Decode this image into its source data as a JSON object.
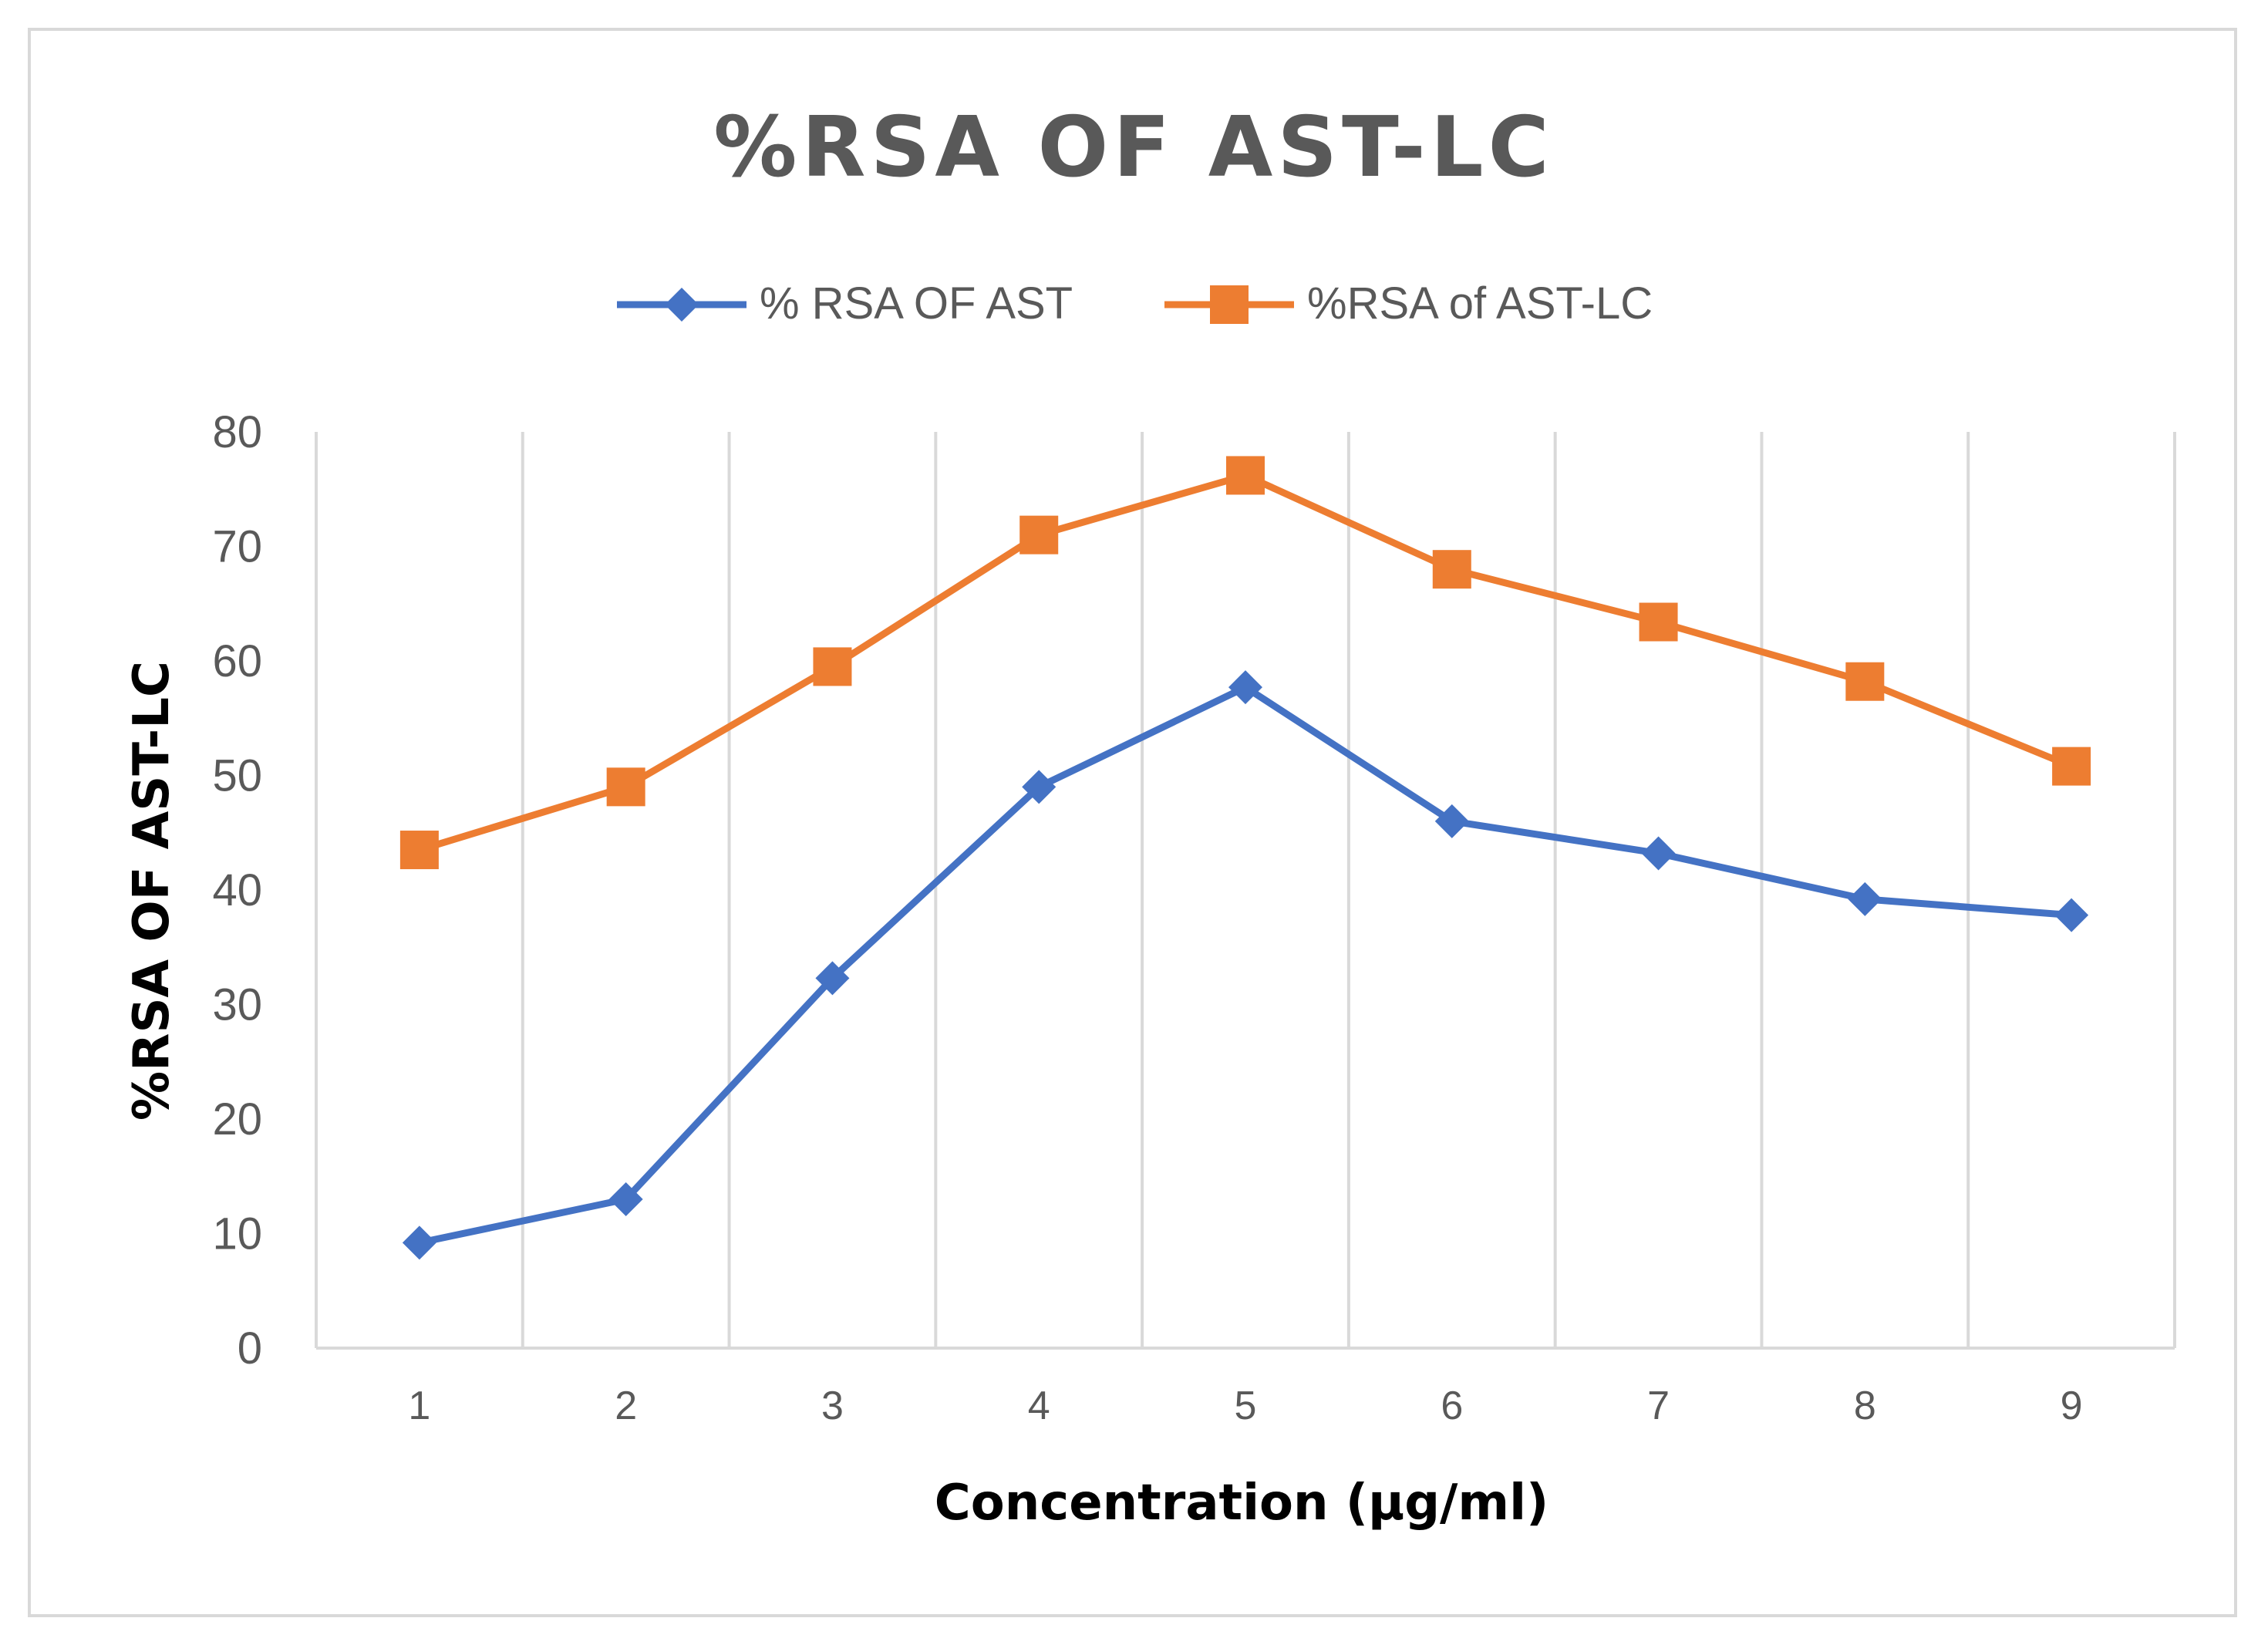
{
  "chart_data": {
    "type": "line",
    "title": "%RSA OF AST-LC",
    "xlabel": "Concentration (µg/ml)",
    "ylabel": "%RSA OF AST-LC",
    "categories": [
      "1",
      "2",
      "3",
      "4",
      "5",
      "6",
      "7",
      "8",
      "9"
    ],
    "ylim": [
      0,
      80
    ],
    "yticks": [
      "0",
      "10",
      "20",
      "30",
      "40",
      "50",
      "60",
      "70",
      "80"
    ],
    "grid": "vertical",
    "legend_position": "top",
    "series": [
      {
        "name": "% RSA OF AST",
        "color": "#4472c4",
        "marker": "diamond",
        "values": [
          9.2,
          13.0,
          32.3,
          49.0,
          57.7,
          46.0,
          43.2,
          39.2,
          37.8
        ]
      },
      {
        "name": "%RSA of AST-LC",
        "color": "#ed7d31",
        "marker": "square",
        "values": [
          43.5,
          49.0,
          59.5,
          71.0,
          76.2,
          68.0,
          63.4,
          58.2,
          50.8
        ]
      }
    ]
  }
}
